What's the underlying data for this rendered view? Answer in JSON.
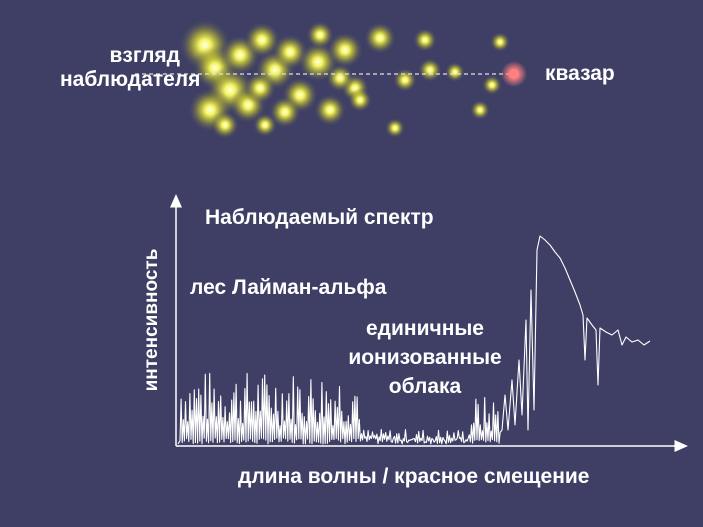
{
  "observer_label": [
    "взгляд",
    "наблюдателя"
  ],
  "quasar_label": "квазар",
  "spectrum_title": "Наблюдаемый спектр",
  "forest_label": "лес Лайман-альфа",
  "clouds_label": [
    "единичные",
    "ионизованные",
    "облака"
  ],
  "y_axis_label": "интенсивность",
  "x_axis_label": "длина волны / красное смещение",
  "colors": {
    "background": "#3f3f66",
    "cloud_glow": "#ffff66",
    "quasar": "#ff8080",
    "spectrum_line": "#ffffff"
  }
}
